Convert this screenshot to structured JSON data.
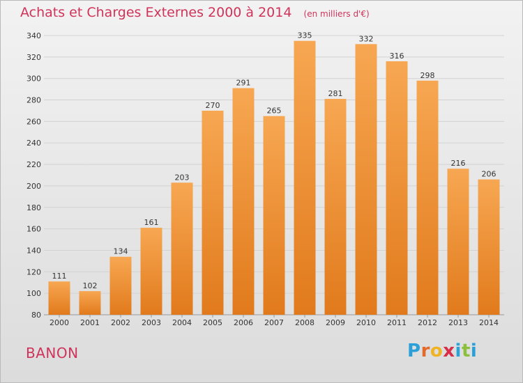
{
  "chart": {
    "title": "Achats et Charges Externes 2000 à 2014",
    "subtitle": "(en milliers d'€)",
    "commune": "BANON",
    "brand": {
      "letters": [
        "P",
        "r",
        "o",
        "x",
        "i",
        "t",
        "i"
      ],
      "colors": [
        "#2a9fd8",
        "#e36a2b",
        "#f0b323",
        "#d72f4a",
        "#2aa4d8",
        "#8bbf3c",
        "#2a9fd8"
      ]
    },
    "colors": {
      "title": "#d0335a",
      "bar_light": "#f7a752",
      "bar_dark": "#e17a1c",
      "grid": "#d2d2d2",
      "axis_text": "#333333"
    }
  },
  "chart_data": {
    "type": "bar",
    "title": "Achats et Charges Externes 2000 à 2014",
    "subtitle": "(en milliers d'€)",
    "categories": [
      "2000",
      "2001",
      "2002",
      "2003",
      "2004",
      "2005",
      "2006",
      "2007",
      "2008",
      "2009",
      "2010",
      "2011",
      "2012",
      "2013",
      "2014"
    ],
    "values": [
      111,
      102,
      134,
      161,
      203,
      270,
      291,
      265,
      335,
      281,
      332,
      316,
      298,
      216,
      206
    ],
    "ylim": [
      80,
      340
    ],
    "yticks": [
      80,
      100,
      120,
      140,
      160,
      180,
      200,
      220,
      240,
      260,
      280,
      300,
      320,
      340
    ],
    "grid": "horizontal",
    "legend": "none",
    "data_labels": true
  }
}
